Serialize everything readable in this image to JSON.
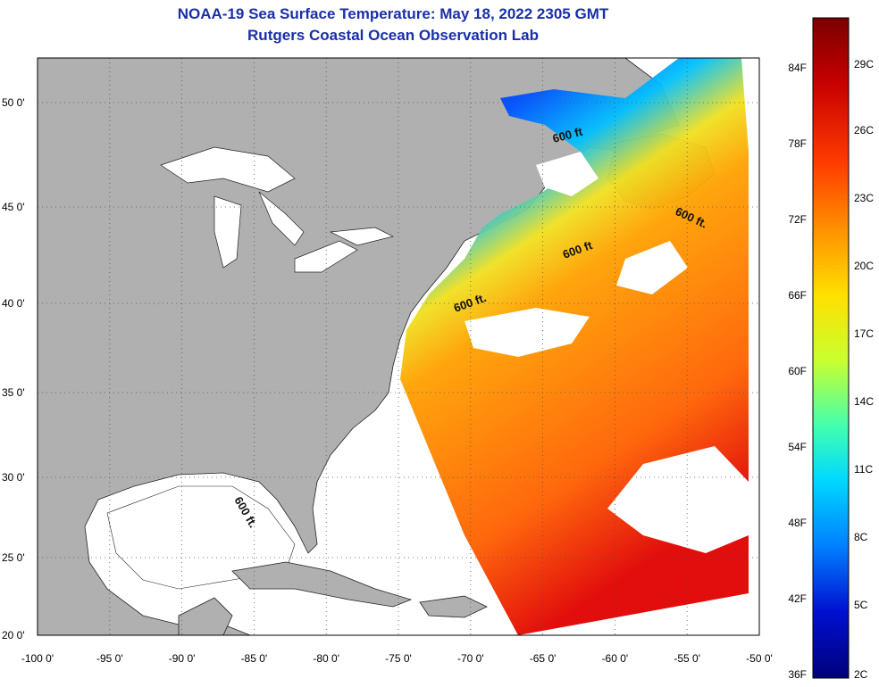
{
  "header": {
    "title": "NOAA-19 Sea Surface Temperature:  May 18, 2022 2305 GMT",
    "subtitle": "Rutgers Coastal Ocean Observation Lab"
  },
  "map": {
    "lon_range": [
      -100,
      -50
    ],
    "lat_range": [
      20,
      52
    ],
    "lat_ticks": [
      {
        "value": 50,
        "label": "50 0'"
      },
      {
        "value": 45,
        "label": "45 0'"
      },
      {
        "value": 40,
        "label": "40 0'"
      },
      {
        "value": 35,
        "label": "35 0'"
      },
      {
        "value": 30,
        "label": "30 0'"
      },
      {
        "value": 25,
        "label": "25 0'"
      },
      {
        "value": 20,
        "label": "20 0'"
      }
    ],
    "lon_ticks": [
      {
        "value": -100,
        "label": "-100 0'"
      },
      {
        "value": -95,
        "label": "-95 0'"
      },
      {
        "value": -90,
        "label": "-90 0'"
      },
      {
        "value": -85,
        "label": "-85 0'"
      },
      {
        "value": -80,
        "label": "-80 0'"
      },
      {
        "value": -75,
        "label": "-75 0'"
      },
      {
        "value": -70,
        "label": "-70 0'"
      },
      {
        "value": -65,
        "label": "-65 0'"
      },
      {
        "value": -60,
        "label": "-60 0'"
      },
      {
        "value": -55,
        "label": "-55 0'"
      },
      {
        "value": -50,
        "label": "-50 0'"
      }
    ],
    "isobath_labels": [
      "600 ft.",
      "600 ft.",
      "600 ft",
      "600 ft",
      "600 ft."
    ],
    "colors": {
      "land": "#b0b0b0",
      "ocean": "#ffffff",
      "grid": "#555555"
    }
  },
  "colorbar": {
    "fahrenheit_labels": [
      "84F",
      "78F",
      "72F",
      "66F",
      "60F",
      "54F",
      "48F",
      "42F",
      "36F"
    ],
    "celsius_labels": [
      "29C",
      "26C",
      "23C",
      "20C",
      "17C",
      "14C",
      "11C",
      "8C",
      "5C",
      "2C"
    ],
    "colors": [
      "#7a0000",
      "#c80000",
      "#ff3c00",
      "#ff9000",
      "#ffe000",
      "#c8ff30",
      "#40ffb0",
      "#00d8ff",
      "#0080ff",
      "#0010d0",
      "#00007a"
    ]
  }
}
